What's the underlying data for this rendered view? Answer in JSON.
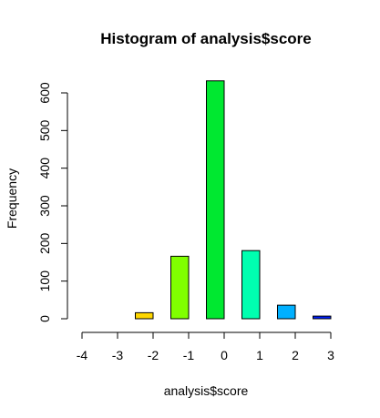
{
  "chart_data": {
    "type": "bar",
    "title": "Histogram of analysis$score",
    "xlabel": "analysis$score",
    "ylabel": "Frequency",
    "xlim": [
      -4,
      3
    ],
    "ylim": [
      0,
      630
    ],
    "x_ticks": [
      "-4",
      "-3",
      "-2",
      "-1",
      "0",
      "1",
      "2",
      "3"
    ],
    "y_ticks": [
      "0",
      "100",
      "200",
      "300",
      "400",
      "500",
      "600"
    ],
    "bars": [
      {
        "x_start": -3.5,
        "x_end": -3.0,
        "value": 0,
        "color": "#FF0000"
      },
      {
        "x_start": -2.5,
        "x_end": -2.0,
        "value": 16,
        "color": "#FFD700"
      },
      {
        "x_start": -1.5,
        "x_end": -1.0,
        "value": 166,
        "color": "#80FF00"
      },
      {
        "x_start": -0.5,
        "x_end": 0.0,
        "value": 632,
        "color": "#00E830"
      },
      {
        "x_start": 0.5,
        "x_end": 1.0,
        "value": 181,
        "color": "#00FFB0"
      },
      {
        "x_start": 1.5,
        "x_end": 2.0,
        "value": 36,
        "color": "#00B0FF"
      },
      {
        "x_start": 2.5,
        "x_end": 3.0,
        "value": 7,
        "color": "#0020FF"
      }
    ]
  }
}
